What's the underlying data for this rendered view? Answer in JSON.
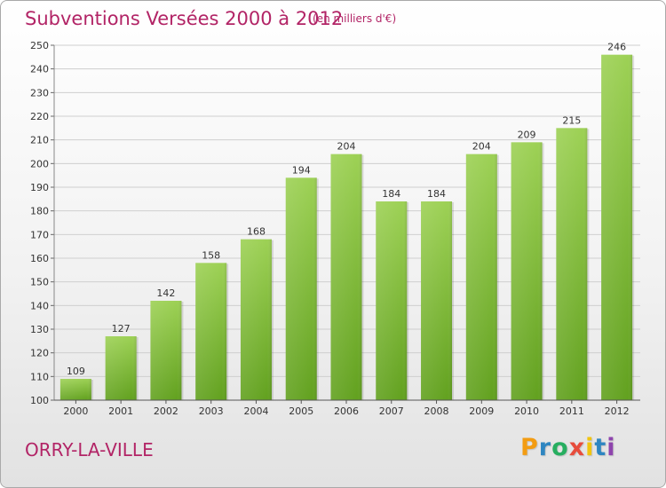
{
  "header": {
    "title": "Subventions Versées 2000 à 2012",
    "unit_note": "(en milliers d'€)"
  },
  "footer": {
    "place": "ORRY-LA-VILLE",
    "brand": "Proxiti",
    "brand_letters": [
      "P",
      "r",
      "o",
      "x",
      "i",
      "t",
      "i"
    ],
    "brand_colors": [
      "#f39c12",
      "#2e86c1",
      "#27ae60",
      "#e74c3c",
      "#f1c40f",
      "#2e86c1",
      "#8e44ad"
    ]
  },
  "colors": {
    "accent": "#b22466",
    "bar_light": "#9dd155",
    "bar_dark": "#62a11f",
    "grid": "#cfcfcf"
  },
  "chart_data": {
    "type": "bar",
    "title": "Subventions Versées 2000 à 2012",
    "subtitle": "(en milliers d'€)",
    "xlabel": "",
    "ylabel": "",
    "categories": [
      "2000",
      "2001",
      "2002",
      "2003",
      "2004",
      "2005",
      "2006",
      "2007",
      "2008",
      "2009",
      "2010",
      "2011",
      "2012"
    ],
    "values": [
      109,
      127,
      142,
      158,
      168,
      194,
      204,
      184,
      184,
      204,
      209,
      215,
      246
    ],
    "ylim": [
      100,
      250
    ],
    "yticks": [
      100,
      110,
      120,
      130,
      140,
      150,
      160,
      170,
      180,
      190,
      200,
      210,
      220,
      230,
      240,
      250
    ],
    "grid": true,
    "legend": "none"
  }
}
